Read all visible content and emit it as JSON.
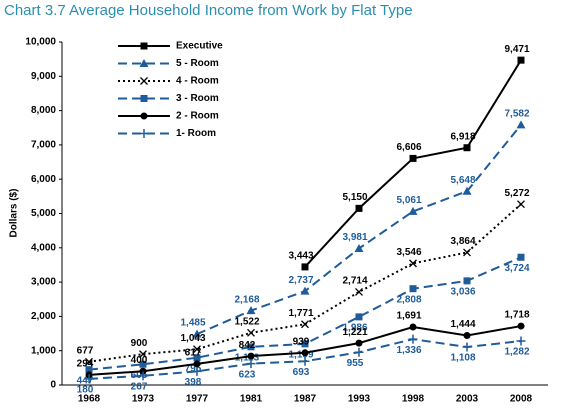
{
  "chart_data": {
    "type": "line",
    "title": "Chart 3.7 Average Household Income from Work by Flat Type",
    "ylabel": "Dollars ($)",
    "categories": [
      "1968",
      "1973",
      "1977",
      "1981",
      "1987",
      "1993",
      "1998",
      "2003",
      "2008"
    ],
    "ylim": [
      0,
      10000
    ],
    "yticks": [
      0,
      {
        "value": 1000,
        "label": "1,000"
      },
      {
        "value": 2000,
        "label": "2,000"
      },
      {
        "value": 3000,
        "label": "3,000"
      },
      {
        "value": 4000,
        "label": "4,000"
      },
      {
        "value": 5000,
        "label": "5,000"
      },
      {
        "value": 6000,
        "label": "6,000"
      },
      {
        "value": 7000,
        "label": "7,000"
      },
      {
        "value": 8000,
        "label": "8,000"
      },
      {
        "value": 9000,
        "label": "9,000"
      },
      {
        "value": 10000,
        "label": "10,000"
      }
    ],
    "grid": false,
    "legend": "upper left",
    "series": [
      {
        "name": "Executive",
        "color": "#000000",
        "dash": "solid",
        "marker": "square",
        "label_pos": "above",
        "values": [
          null,
          null,
          null,
          null,
          3443,
          5150,
          6606,
          6918,
          9471
        ],
        "value_labels": [
          null,
          null,
          null,
          null,
          "3,443",
          "5,150",
          "6,606",
          "6,918",
          "9,471"
        ]
      },
      {
        "name": "5 - Room",
        "color": "#1f5c99",
        "dash": "long",
        "marker": "triangle",
        "label_pos": "above",
        "values": [
          null,
          null,
          1485,
          2168,
          2737,
          3981,
          5061,
          5648,
          7582
        ],
        "value_labels": [
          null,
          null,
          "1,485",
          "2,168",
          "2,737",
          "3,981",
          "5,061",
          "5,648",
          "7,582"
        ]
      },
      {
        "name": "4 - Room",
        "color": "#000000",
        "dash": "dot",
        "marker": "x",
        "label_pos": "above",
        "values": [
          677,
          900,
          1043,
          1522,
          1771,
          2714,
          3546,
          3864,
          5272
        ],
        "value_labels": [
          "677",
          "900",
          "1,043",
          "1,522",
          "1,771",
          "2,714",
          "3,546",
          "3,864",
          "5,272"
        ]
      },
      {
        "name": "3 - Room",
        "color": "#1f5c99",
        "dash": "long",
        "marker": "square",
        "label_pos": "below",
        "values": [
          447,
          605,
          795,
          1113,
          1199,
          1986,
          2808,
          3036,
          3724
        ],
        "value_labels": [
          "447",
          "605",
          "795",
          "1,113",
          "1,199",
          "1,986",
          "2,808",
          "3,036",
          "3,724"
        ]
      },
      {
        "name": "2 - Room",
        "color": "#000000",
        "dash": "solid",
        "marker": "circle",
        "label_pos": "above",
        "values": [
          294,
          400,
          617,
          842,
          939,
          1221,
          1691,
          1444,
          1718
        ],
        "value_labels": [
          "294",
          "400",
          "617",
          "842",
          "939",
          "1,221",
          "1,691",
          "1,444",
          "1,718"
        ]
      },
      {
        "name": "1- Room",
        "color": "#1f5c99",
        "dash": "long",
        "marker": "plus",
        "label_pos": "below",
        "values": [
          180,
          267,
          398,
          623,
          693,
          955,
          1336,
          1108,
          1282
        ],
        "value_labels": [
          "180",
          "267",
          "398",
          "623",
          "693",
          "955",
          "1,336",
          "1,108",
          "1,282"
        ]
      }
    ]
  }
}
